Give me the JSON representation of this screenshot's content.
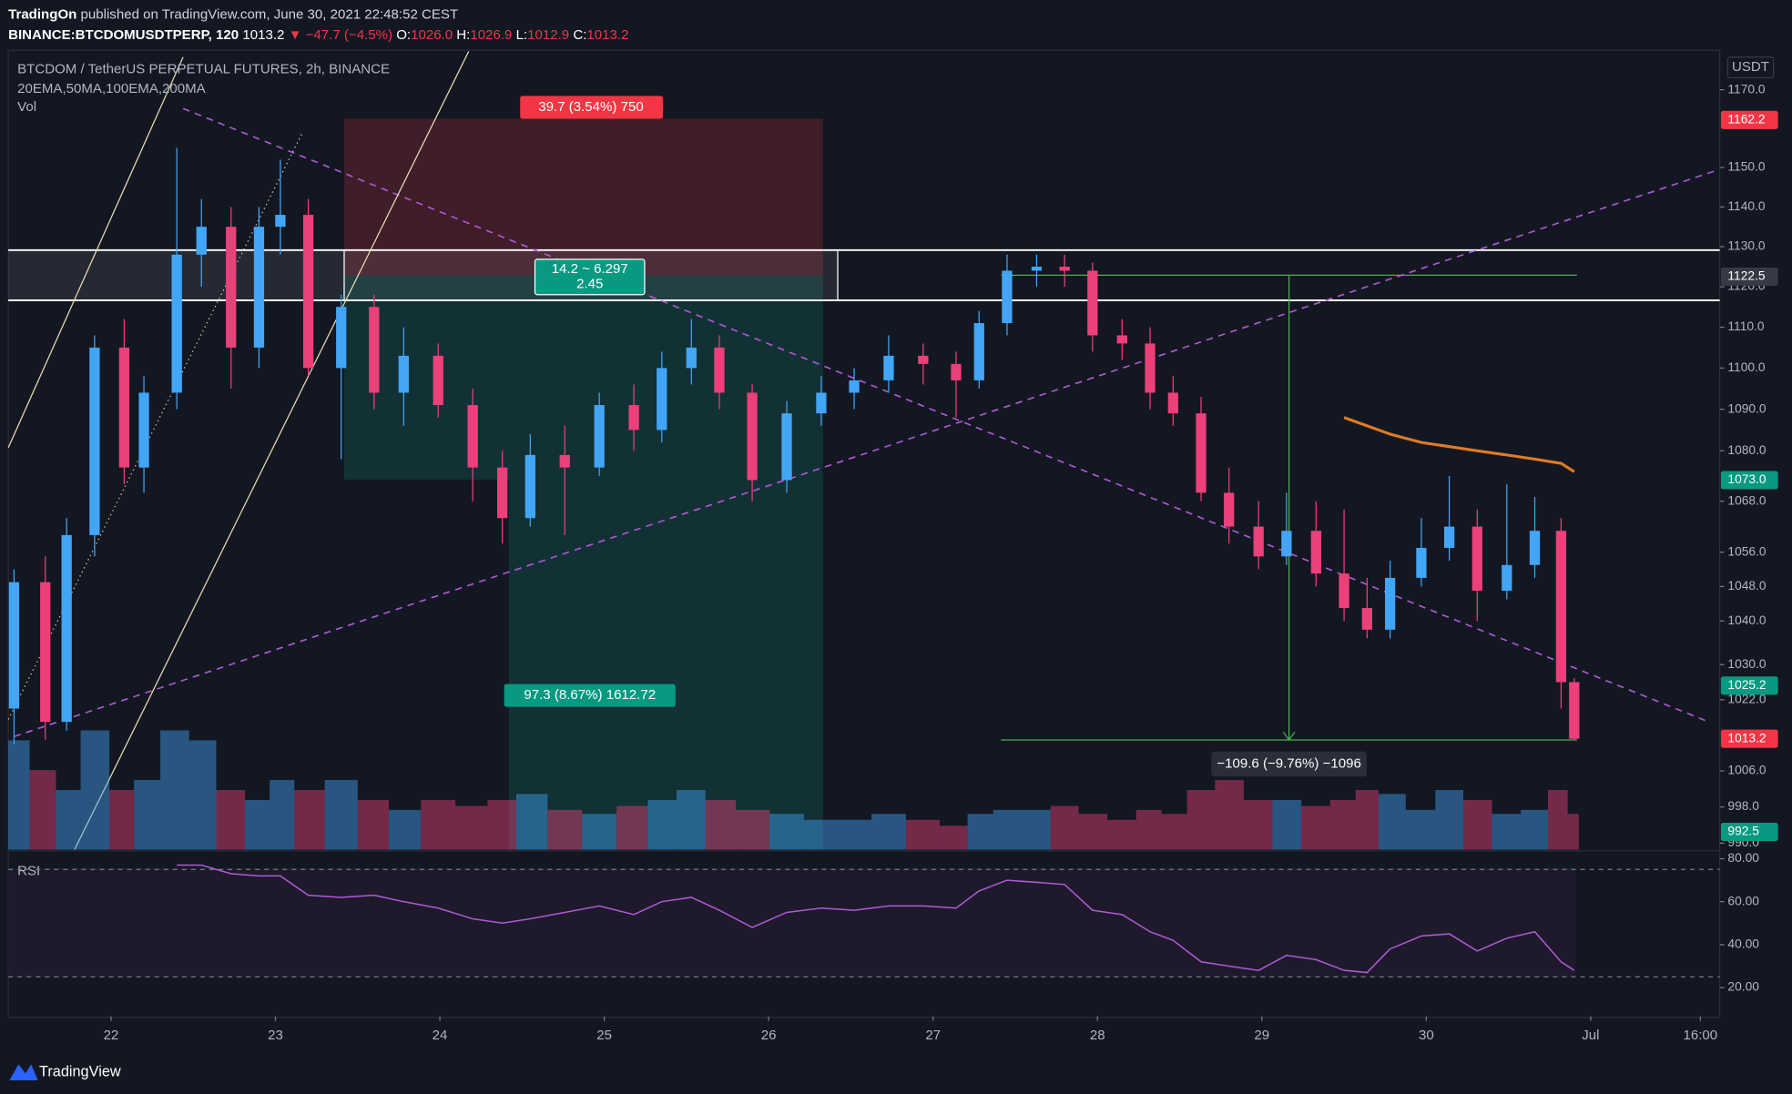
{
  "header": {
    "publisher": "TradingOn",
    "published": "published on TradingView.com, June 30, 2021 22:48:52 CEST",
    "symbol": "BINANCE:BTCDOMUSDTPERP, 120",
    "last": "1013.2",
    "change": "▼ −47.7 (−4.5%)",
    "ohlc": [
      {
        "key": "O:",
        "value": "1026.0"
      },
      {
        "key": "H:",
        "value": "1026.9"
      },
      {
        "key": "L:",
        "value": "1012.9"
      },
      {
        "key": "C:",
        "value": "1013.2"
      }
    ]
  },
  "footer": {
    "brand": "TradingView"
  },
  "chart_data": {
    "type": "candlestick",
    "title": "BTCDOM / TetherUS PERPETUAL FUTURES, 2h, BINANCE",
    "subtitle": "20EMA,50MA,100EMA,200MA",
    "volume_label": "Vol",
    "currency": "USDT",
    "log_scale": true,
    "grid": false,
    "up_color": "#42a5f5",
    "down_color": "#ec407a",
    "x": [
      21.41,
      21.6,
      21.73,
      21.9,
      22.08,
      22.2,
      22.4,
      22.55,
      22.73,
      22.9,
      23.03,
      23.2,
      23.4,
      23.6,
      23.78,
      23.99,
      24.2,
      24.38,
      24.55,
      24.76,
      24.97,
      25.18,
      25.35,
      25.53,
      25.7,
      25.9,
      26.11,
      26.32,
      26.52,
      26.73,
      26.94,
      27.14,
      27.28,
      27.45,
      27.63,
      27.8,
      27.97,
      28.15,
      28.32,
      28.46,
      28.63,
      28.8,
      28.98,
      29.15,
      29.33,
      29.5,
      29.64,
      29.78,
      29.97,
      30.14,
      30.31,
      30.49,
      30.66,
      30.82,
      30.9
    ],
    "open": [
      1020,
      1049,
      1017,
      1060,
      1105,
      1076,
      1094,
      1128,
      1135,
      1105,
      1135,
      1138,
      1100,
      1115,
      1094,
      1103,
      1091,
      1076,
      1064,
      1079,
      1076,
      1091,
      1085,
      1100,
      1105,
      1094,
      1073,
      1089,
      1094,
      1097,
      1103,
      1101,
      1097,
      1111,
      1124,
      1125,
      1124,
      1108,
      1106,
      1094,
      1089,
      1070,
      1062,
      1055,
      1061,
      1051,
      1043,
      1038,
      1050,
      1057,
      1062,
      1047,
      1053,
      1061,
      1026
    ],
    "high": [
      1052,
      1055,
      1064,
      1108,
      1112,
      1098,
      1155,
      1142,
      1140,
      1140,
      1152,
      1142,
      1118,
      1118,
      1110,
      1106,
      1095,
      1080,
      1084,
      1086,
      1094,
      1096,
      1104,
      1112,
      1108,
      1096,
      1092,
      1098,
      1100,
      1108,
      1106,
      1104,
      1114,
      1128,
      1128,
      1128,
      1126,
      1112,
      1110,
      1098,
      1093,
      1076,
      1068,
      1070,
      1068,
      1066,
      1050,
      1054,
      1064,
      1074,
      1066,
      1072,
      1069,
      1064,
      1026.9
    ],
    "low": [
      1012,
      1013,
      1015,
      1055,
      1072,
      1070,
      1090,
      1120,
      1095,
      1100,
      1128,
      1098,
      1078,
      1090,
      1086,
      1088,
      1068,
      1058,
      1062,
      1060,
      1074,
      1080,
      1082,
      1096,
      1090,
      1068,
      1070,
      1086,
      1090,
      1094,
      1096,
      1088,
      1095,
      1108,
      1120,
      1120,
      1104,
      1102,
      1090,
      1086,
      1068,
      1058,
      1052,
      1053,
      1048,
      1040,
      1036,
      1036,
      1048,
      1054,
      1040,
      1045,
      1050,
      1020,
      1012.9
    ],
    "close": [
      1049,
      1017,
      1060,
      1105,
      1076,
      1094,
      1128,
      1135,
      1105,
      1135,
      1138,
      1100,
      1115,
      1094,
      1103,
      1091,
      1076,
      1064,
      1079,
      1076,
      1091,
      1085,
      1100,
      1105,
      1094,
      1073,
      1089,
      1094,
      1097,
      1103,
      1101,
      1097,
      1111,
      1124,
      1125,
      1124,
      1108,
      1106,
      1094,
      1089,
      1070,
      1062,
      1055,
      1061,
      1051,
      1043,
      1038,
      1050,
      1057,
      1062,
      1047,
      1053,
      1061,
      1026,
      1013.2
    ],
    "volume": [
      55,
      40,
      30,
      60,
      30,
      35,
      60,
      55,
      30,
      25,
      35,
      30,
      35,
      25,
      20,
      25,
      22,
      25,
      28,
      20,
      18,
      22,
      25,
      30,
      25,
      20,
      18,
      15,
      15,
      18,
      15,
      12,
      18,
      20,
      20,
      22,
      18,
      15,
      20,
      18,
      30,
      35,
      25,
      25,
      22,
      25,
      30,
      28,
      20,
      30,
      25,
      18,
      20,
      30,
      18
    ],
    "volume_lim": [
      0,
      100
    ],
    "ma": {
      "color": "#e07b24",
      "values": [
        null,
        null,
        null,
        null,
        null,
        null,
        null,
        null,
        null,
        null,
        null,
        null,
        null,
        null,
        null,
        null,
        null,
        null,
        null,
        null,
        null,
        null,
        null,
        null,
        null,
        null,
        null,
        null,
        null,
        null,
        null,
        null,
        null,
        null,
        null,
        null,
        null,
        null,
        null,
        null,
        null,
        null,
        null,
        null,
        null,
        1088,
        1086,
        1084,
        1082,
        1081,
        1080,
        1079,
        1078,
        1077,
        1075
      ]
    },
    "xlim": [
      21.375,
      31.785
    ],
    "xticks": [
      22,
      23,
      24,
      25,
      26,
      27,
      28,
      29,
      30,
      {
        "value": 31,
        "label": "Jul"
      },
      {
        "value": 31.667,
        "label": "16:00"
      }
    ],
    "ylim": [
      988.6,
      1180
    ],
    "yticks": [
      {
        "value": 1170,
        "label": "1170.0"
      },
      {
        "value": 1150,
        "label": "1150.0"
      },
      {
        "value": 1140,
        "label": "1140.0"
      },
      {
        "value": 1130,
        "label": "1130.0"
      },
      {
        "value": 1120,
        "label": "1120.0"
      },
      {
        "value": 1110,
        "label": "1110.0"
      },
      {
        "value": 1100,
        "label": "1100.0"
      },
      {
        "value": 1090,
        "label": "1090.0"
      },
      {
        "value": 1080,
        "label": "1080.0"
      },
      {
        "value": 1068,
        "label": "1068.0"
      },
      {
        "value": 1056,
        "label": "1056.0"
      },
      {
        "value": 1048,
        "label": "1048.0"
      },
      {
        "value": 1040,
        "label": "1040.0"
      },
      {
        "value": 1030,
        "label": "1030.0"
      },
      {
        "value": 1022,
        "label": "1022.0"
      },
      {
        "value": 1006,
        "label": "1006.0"
      },
      {
        "value": 998,
        "label": "998.0"
      },
      {
        "value": 990,
        "label": "990.0"
      }
    ],
    "price_labels": [
      {
        "value": 1162.2,
        "color": "#f23645"
      },
      {
        "value": 1122.5,
        "color": "#363a45"
      },
      {
        "value": 1073,
        "label": "1073.0",
        "color": "#089981"
      },
      {
        "value": 1025.2,
        "color": "#089981"
      },
      {
        "value": 1013.2,
        "color": "#f23645"
      },
      {
        "value": 992.5,
        "color": "#089981"
      }
    ],
    "rsi": {
      "label": "RSI",
      "color": "#b159d6",
      "ylim": [
        6.6,
        83.7
      ],
      "bands": [
        75,
        25
      ],
      "yticks": [
        {
          "value": 80,
          "label": "80.00"
        },
        {
          "value": 60,
          "label": "60.00"
        },
        {
          "value": 40,
          "label": "40.00"
        },
        {
          "value": 20,
          "label": "20.00"
        }
      ],
      "values": [
        null,
        null,
        null,
        null,
        null,
        null,
        77,
        77,
        73,
        72,
        72,
        63,
        62,
        63,
        60,
        57,
        52,
        50,
        52,
        55,
        58,
        54,
        60,
        62,
        56,
        48,
        55,
        57,
        56,
        58,
        58,
        57,
        65,
        70,
        69,
        68,
        56,
        54,
        46,
        42,
        32,
        30,
        28,
        35,
        33,
        28,
        27,
        38,
        44,
        45,
        37,
        43,
        46,
        32,
        28
      ]
    },
    "annotations": {
      "risk": "39.7 (3.54%) 750",
      "ratio": "14.2 ~ 6.297",
      "ratio_value": "2.45",
      "reward": "97.3 (8.67%) 1612.72",
      "measure": "−109.6 (−9.76%) −1096"
    }
  }
}
